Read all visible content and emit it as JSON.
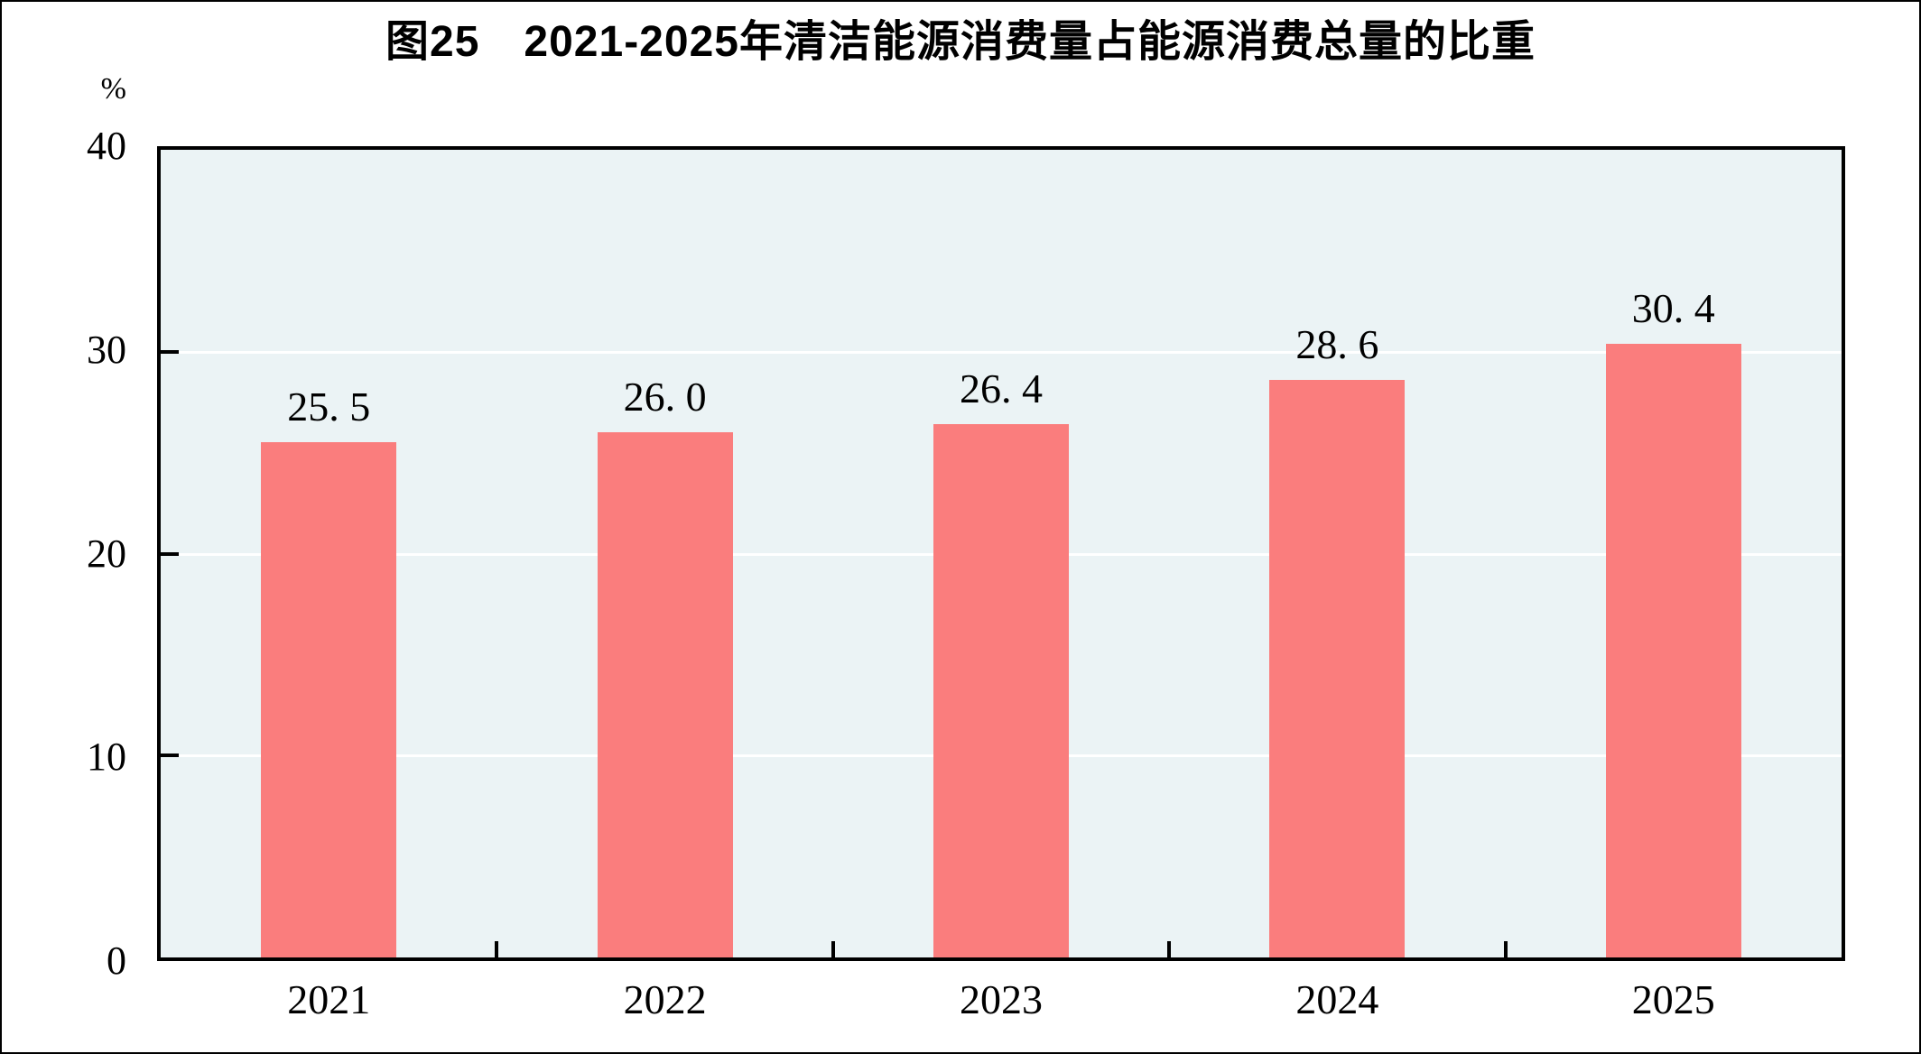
{
  "chart_data": {
    "type": "bar",
    "title": "图25　2021-2025年清洁能源消费量占能源消费总量的比重",
    "unit_label": "%",
    "categories": [
      "2021",
      "2022",
      "2023",
      "2024",
      "2025"
    ],
    "values": [
      25.5,
      26.0,
      26.4,
      28.6,
      30.4
    ],
    "value_labels": [
      "25. 5",
      "26. 0",
      "26. 4",
      "28. 6",
      "30. 4"
    ],
    "xlabel": "",
    "ylabel": "%",
    "ylim": [
      0,
      40
    ],
    "yticks": [
      0,
      10,
      20,
      30,
      40
    ],
    "gridline_values": [
      10,
      20,
      30
    ],
    "legend_position": "none",
    "grid": "horizontal white lines",
    "colors": {
      "bar": "#fa7d7d",
      "plot_background": "#ebf3f5",
      "gridline": "#ffffff",
      "axis": "#000000",
      "text": "#000000",
      "page_background": "#ffffff"
    }
  }
}
